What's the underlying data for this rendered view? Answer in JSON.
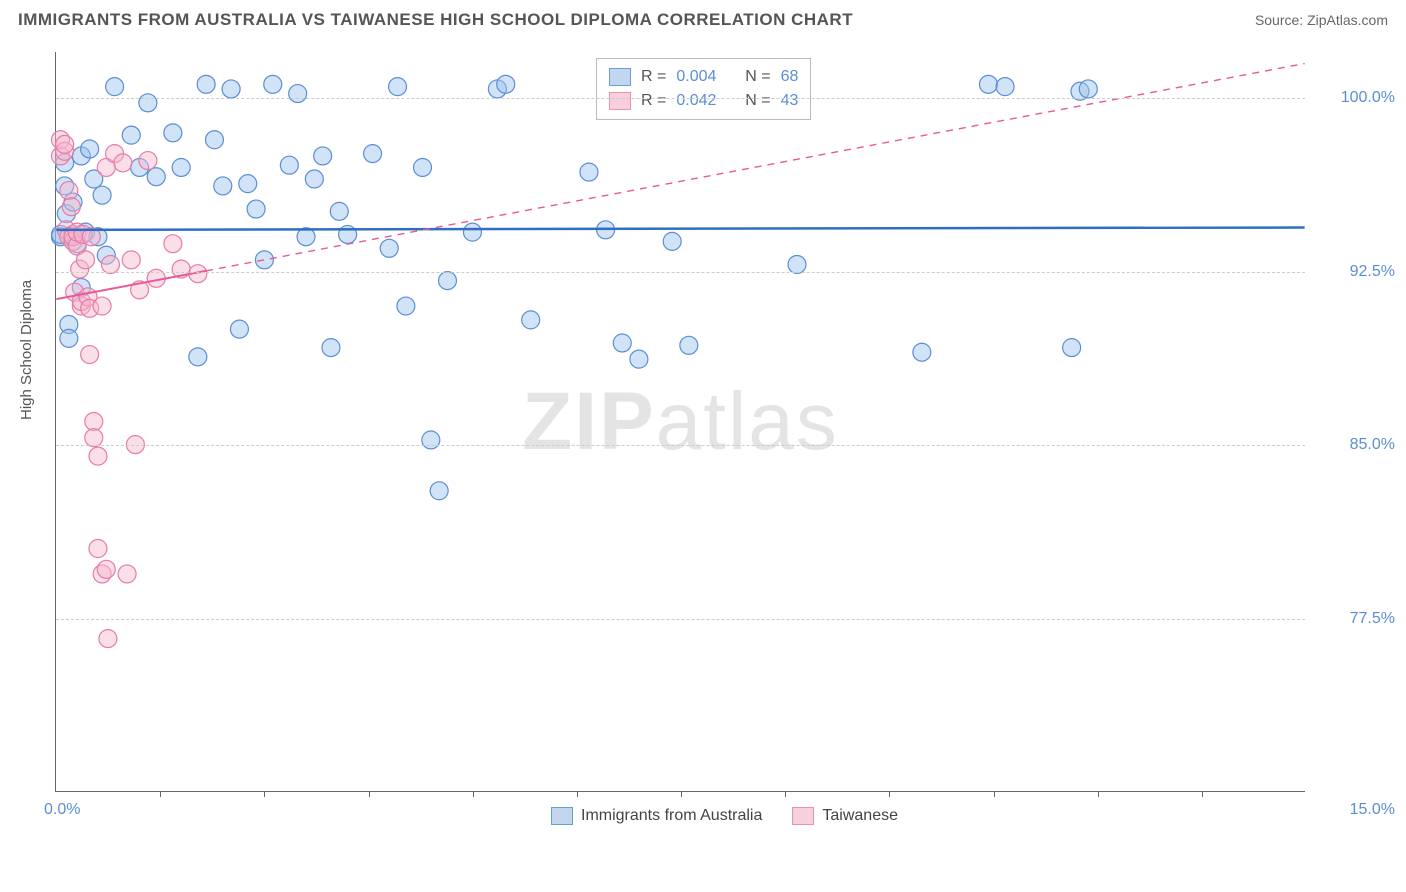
{
  "header": {
    "title": "IMMIGRANTS FROM AUSTRALIA VS TAIWANESE HIGH SCHOOL DIPLOMA CORRELATION CHART",
    "source_prefix": "Source: ",
    "source_name": "ZipAtlas.com"
  },
  "watermark": {
    "bold": "ZIP",
    "rest": "atlas"
  },
  "chart": {
    "type": "scatter",
    "background_color": "#ffffff",
    "grid_color": "#cccccc",
    "axis_color": "#666666",
    "ylabel": "High School Diploma",
    "xlim": [
      0.0,
      15.0
    ],
    "ylim": [
      70.0,
      102.0
    ],
    "xticks": [
      0.0,
      15.0
    ],
    "xtick_labels": [
      "0.0%",
      "15.0%"
    ],
    "xtick_minor_positions": [
      1.25,
      2.5,
      3.75,
      5.0,
      6.25,
      7.5,
      8.75,
      10.0,
      11.25,
      12.5,
      13.75
    ],
    "yticks": [
      77.5,
      85.0,
      92.5,
      100.0
    ],
    "ytick_labels": [
      "77.5%",
      "85.0%",
      "92.5%",
      "100.0%"
    ],
    "marker_radius": 9,
    "marker_opacity": 0.45,
    "marker_stroke_width": 1.2,
    "series": [
      {
        "name": "Immigrants from Australia",
        "fill_color": "#9ac1eb",
        "stroke_color": "#5b8dd6",
        "R": "0.004",
        "N": "68",
        "trend": {
          "y_at_xmin": 94.3,
          "y_at_xmax": 94.4,
          "solid_until_x": 15.0,
          "color": "#2f6fc2",
          "width": 2.5
        },
        "points": [
          [
            0.05,
            94.0
          ],
          [
            0.05,
            94.1
          ],
          [
            0.1,
            96.2
          ],
          [
            0.1,
            97.2
          ],
          [
            0.12,
            95.0
          ],
          [
            0.15,
            90.2
          ],
          [
            0.15,
            89.6
          ],
          [
            0.2,
            94.1
          ],
          [
            0.2,
            95.5
          ],
          [
            0.25,
            93.7
          ],
          [
            0.3,
            97.5
          ],
          [
            0.3,
            91.8
          ],
          [
            0.35,
            94.2
          ],
          [
            0.4,
            97.8
          ],
          [
            0.45,
            96.5
          ],
          [
            0.5,
            94.0
          ],
          [
            0.55,
            95.8
          ],
          [
            0.6,
            93.2
          ],
          [
            0.7,
            100.5
          ],
          [
            0.9,
            98.4
          ],
          [
            1.0,
            97.0
          ],
          [
            1.1,
            99.8
          ],
          [
            1.2,
            96.6
          ],
          [
            1.4,
            98.5
          ],
          [
            1.5,
            97.0
          ],
          [
            1.7,
            88.8
          ],
          [
            1.8,
            100.6
          ],
          [
            1.9,
            98.2
          ],
          [
            2.0,
            96.2
          ],
          [
            2.1,
            100.4
          ],
          [
            2.2,
            90.0
          ],
          [
            2.3,
            96.3
          ],
          [
            2.4,
            95.2
          ],
          [
            2.5,
            93.0
          ],
          [
            2.6,
            100.6
          ],
          [
            2.8,
            97.1
          ],
          [
            2.9,
            100.2
          ],
          [
            3.0,
            94.0
          ],
          [
            3.1,
            96.5
          ],
          [
            3.2,
            97.5
          ],
          [
            3.3,
            89.2
          ],
          [
            3.4,
            95.1
          ],
          [
            3.5,
            94.1
          ],
          [
            3.8,
            97.6
          ],
          [
            4.0,
            93.5
          ],
          [
            4.1,
            100.5
          ],
          [
            4.2,
            91.0
          ],
          [
            4.4,
            97.0
          ],
          [
            4.5,
            85.2
          ],
          [
            4.6,
            83.0
          ],
          [
            4.7,
            92.1
          ],
          [
            5.0,
            94.2
          ],
          [
            5.3,
            100.4
          ],
          [
            5.4,
            100.6
          ],
          [
            5.7,
            90.4
          ],
          [
            6.4,
            96.8
          ],
          [
            6.6,
            94.3
          ],
          [
            6.8,
            89.4
          ],
          [
            7.0,
            88.7
          ],
          [
            7.4,
            93.8
          ],
          [
            7.6,
            89.3
          ],
          [
            8.9,
            92.8
          ],
          [
            10.4,
            89.0
          ],
          [
            11.2,
            100.6
          ],
          [
            11.4,
            100.5
          ],
          [
            12.2,
            89.2
          ],
          [
            12.3,
            100.3
          ],
          [
            12.4,
            100.4
          ]
        ]
      },
      {
        "name": "Taiwanese",
        "fill_color": "#f5b8ce",
        "stroke_color": "#e77aa8",
        "R": "0.042",
        "N": "43",
        "trend": {
          "y_at_xmin": 91.3,
          "y_at_xmax": 101.5,
          "solid_until_x": 1.8,
          "color": "#e65a9a",
          "width": 2,
          "dash": "7,6"
        },
        "points": [
          [
            0.05,
            97.5
          ],
          [
            0.05,
            98.2
          ],
          [
            0.1,
            97.7
          ],
          [
            0.1,
            98.0
          ],
          [
            0.12,
            94.3
          ],
          [
            0.15,
            94.0
          ],
          [
            0.15,
            96.0
          ],
          [
            0.18,
            95.3
          ],
          [
            0.2,
            93.8
          ],
          [
            0.2,
            94.0
          ],
          [
            0.22,
            91.6
          ],
          [
            0.25,
            93.6
          ],
          [
            0.25,
            94.2
          ],
          [
            0.28,
            92.6
          ],
          [
            0.3,
            91.0
          ],
          [
            0.3,
            91.2
          ],
          [
            0.32,
            94.1
          ],
          [
            0.35,
            93.0
          ],
          [
            0.38,
            91.4
          ],
          [
            0.4,
            90.9
          ],
          [
            0.4,
            88.9
          ],
          [
            0.42,
            94.0
          ],
          [
            0.45,
            86.0
          ],
          [
            0.45,
            85.3
          ],
          [
            0.5,
            80.5
          ],
          [
            0.5,
            84.5
          ],
          [
            0.55,
            91.0
          ],
          [
            0.55,
            79.4
          ],
          [
            0.6,
            97.0
          ],
          [
            0.6,
            79.6
          ],
          [
            0.62,
            76.6
          ],
          [
            0.65,
            92.8
          ],
          [
            0.7,
            97.6
          ],
          [
            0.8,
            97.2
          ],
          [
            0.85,
            79.4
          ],
          [
            0.9,
            93.0
          ],
          [
            0.95,
            85.0
          ],
          [
            1.0,
            91.7
          ],
          [
            1.1,
            97.3
          ],
          [
            1.2,
            92.2
          ],
          [
            1.4,
            93.7
          ],
          [
            1.5,
            92.6
          ],
          [
            1.7,
            92.4
          ]
        ]
      }
    ],
    "legend_top": {
      "R_label": "R =",
      "N_label": "N ="
    },
    "legend_bottom": {
      "items": [
        "Immigrants from Australia",
        "Taiwanese"
      ]
    }
  }
}
